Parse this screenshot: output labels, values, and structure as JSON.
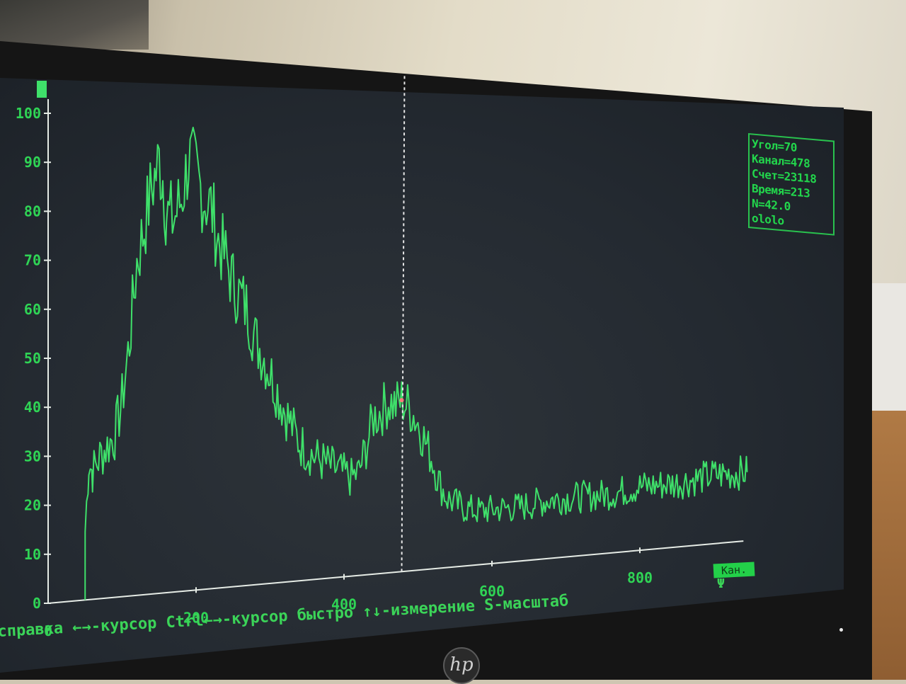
{
  "scene": {
    "brand": "hp",
    "colors": {
      "trace": "#3fe06a",
      "text": "#2fd455",
      "screen": "#262c33",
      "cursor_line": "#e8e8e8",
      "bezel": "#151515"
    }
  },
  "readout": {
    "angle": "Угол=70",
    "channel": "Канал=478",
    "count": "Счет=23118",
    "time": "Время=213",
    "n": "N=42.0",
    "extra": "ololo"
  },
  "status_bar": {
    "help_text": "справка ←→-курсор Ctrl←→-курсор быстро ↑↓-измерение S-масштаб",
    "axis_unit_label": "Кан.",
    "trailing_glyph": "Ψ"
  },
  "chart_data": {
    "type": "line",
    "xlabel": "Кан.",
    "ylabel": "",
    "xlim": [
      0,
      950
    ],
    "ylim": [
      0,
      100
    ],
    "x_ticks": [
      0,
      200,
      400,
      600,
      800
    ],
    "y_ticks": [
      0,
      10,
      20,
      30,
      40,
      50,
      60,
      70,
      80,
      90,
      100
    ],
    "cursor_channel": 478,
    "series": [
      {
        "x": [
          50,
          55,
          60,
          70,
          80,
          90,
          100,
          110,
          120,
          130,
          140,
          150,
          155,
          160,
          170,
          180,
          190,
          200,
          210,
          220,
          230,
          240,
          250,
          260,
          270,
          280,
          290,
          300,
          320,
          340,
          360,
          380,
          400,
          410,
          420,
          430,
          440,
          450,
          460,
          470,
          478,
          490,
          500,
          510,
          520,
          530,
          540,
          560,
          580,
          600,
          640,
          680,
          720,
          760,
          800,
          850,
          900,
          945
        ],
        "y": [
          14,
          28,
          26,
          29,
          31,
          33,
          40,
          52,
          68,
          75,
          83,
          88,
          85,
          77,
          76,
          80,
          88,
          85,
          80,
          78,
          71,
          67,
          62,
          59,
          56,
          50,
          47,
          43,
          35,
          28,
          25,
          23,
          21,
          20,
          21,
          26,
          32,
          33,
          35,
          34,
          35,
          33,
          30,
          26,
          22,
          17,
          14,
          12,
          11,
          11,
          11,
          12,
          12,
          12,
          13,
          13,
          14,
          14
        ]
      }
    ]
  }
}
